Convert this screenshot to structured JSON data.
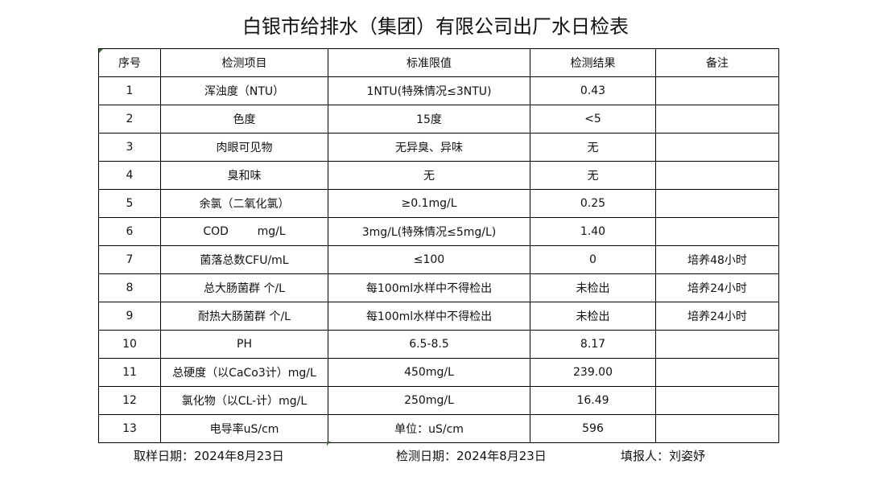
{
  "title": "白银市给排水（集团）有限公司出厂水日检表",
  "table": {
    "headers": [
      "序号",
      "检测项目",
      "标准限值",
      "检测结果",
      "备注"
    ],
    "rows": [
      [
        "1",
        "浑浊度（NTU）",
        "1NTU(特殊情况≤3NTU)",
        "0.43",
        ""
      ],
      [
        "2",
        "色度",
        "15度",
        "<5",
        ""
      ],
      [
        "3",
        "肉眼可见物",
        "无异臭、异味",
        "无",
        ""
      ],
      [
        "4",
        "臭和味",
        "无",
        "无",
        ""
      ],
      [
        "5",
        "余氯（二氧化氯）",
        "≥0.1mg/L",
        "0.25",
        ""
      ],
      [
        "6",
        "COD        mg/L",
        "3mg/L(特殊情况≤5mg/L)",
        "1.40",
        ""
      ],
      [
        "7",
        "菌落总数CFU/mL",
        "≤100",
        "0",
        "培养48小时"
      ],
      [
        "8",
        "总大肠菌群 个/L",
        "每100ml水样中不得检出",
        "未检出",
        "培养24小时"
      ],
      [
        "9",
        "耐热大肠菌群 个/L",
        "每100ml水样中不得检出",
        "未检出",
        "培养24小时"
      ],
      [
        "10",
        "PH",
        "6.5-8.5",
        "8.17",
        ""
      ],
      [
        "11",
        "总硬度（以CaCo3计）mg/L",
        "450mg/L",
        "239.00",
        ""
      ],
      [
        "12",
        "氯化物（以CL-计）mg/L",
        "250mg/L",
        "16.49",
        ""
      ],
      [
        "13",
        "电导率uS/cm",
        "单位：uS/cm",
        "596",
        ""
      ]
    ]
  },
  "footer": {
    "sampling_date": "取样日期：2024年8月23日",
    "test_date": "检测日期：2024年8月23日",
    "filled_by": "填报人：刘姿妤"
  }
}
